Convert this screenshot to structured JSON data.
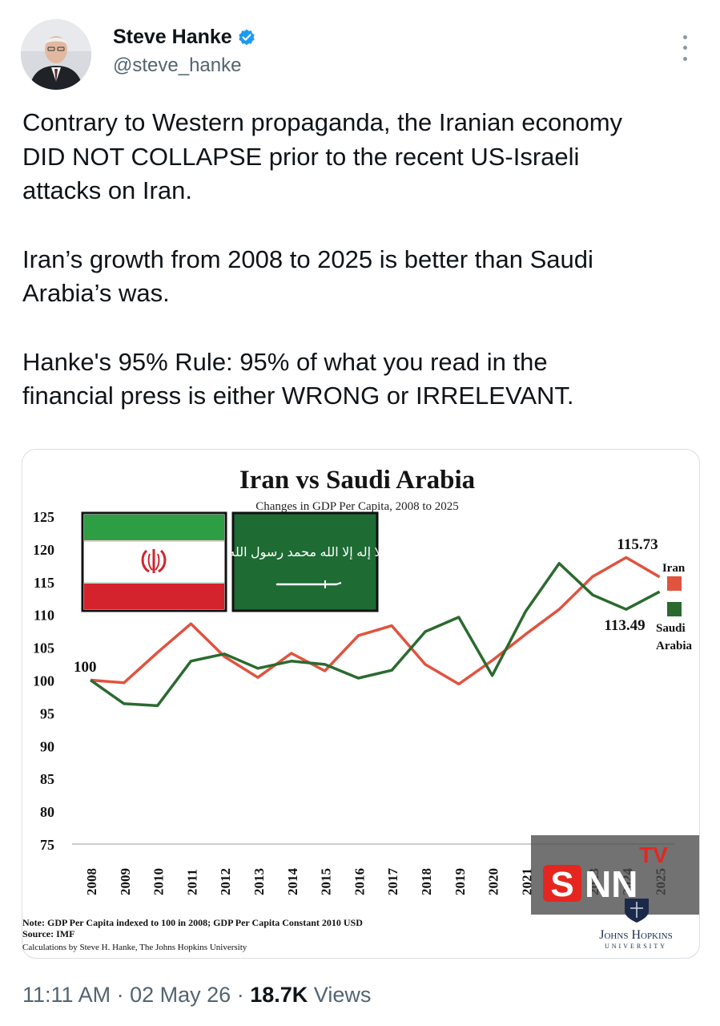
{
  "user": {
    "name": "Steve Hanke",
    "handle": "@steve_hanke"
  },
  "tweet": {
    "paragraphs": [
      "Contrary to Western propaganda, the Iranian economy\nDID NOT COLLAPSE prior to the recent US-Israeli\nattacks on Iran.",
      "Iran’s growth from 2008 to 2025 is better than Saudi\nArabia’s was.",
      "Hanke's 95% Rule: 95% of what you read in the\nfinancial press is either WRONG or IRRELEVANT."
    ]
  },
  "chart": {
    "flag_inscription": "لا إله إلا الله محمد رسول الله",
    "notes": [
      "Note: GDP Per Capita indexed to 100 in 2008; GDP Per Capita Constant 2010 USD",
      "Source: IMF",
      "Calculations by Steve H. Hanke, The Johns Hopkins University"
    ],
    "logo_line1": "Johns Hopkins",
    "logo_line2": "UNIVERSITY",
    "watermark": "SNN",
    "watermark_sup": "TV"
  },
  "chart_data": {
    "type": "line",
    "title": "Iran vs Saudi Arabia",
    "subtitle": "Changes in GDP Per Capita, 2008 to 2025",
    "xlabel": "",
    "ylabel": "",
    "x": [
      "2008",
      "2009",
      "2010",
      "2011",
      "2012",
      "2013",
      "2014",
      "2015",
      "2016",
      "2017",
      "2018",
      "2019",
      "2020",
      "2021",
      "2022",
      "2023",
      "2024",
      "2025"
    ],
    "ylim": [
      75,
      125
    ],
    "yticks": [
      125,
      120,
      115,
      110,
      105,
      100,
      95,
      90,
      85,
      80,
      75
    ],
    "series": [
      {
        "name": "Iran",
        "color": "#e0533f",
        "values": [
          100,
          99.6,
          104.2,
          108.6,
          103.6,
          100.4,
          104.1,
          101.4,
          106.8,
          108.3,
          102.4,
          99.4,
          103.0,
          107.0,
          110.8,
          115.8,
          118.7,
          115.73
        ]
      },
      {
        "name": "Saudi Arabia",
        "color": "#2b6a2f",
        "values": [
          100,
          96.4,
          96.1,
          102.9,
          104.0,
          101.8,
          102.9,
          102.4,
          100.3,
          101.5,
          107.4,
          109.6,
          100.7,
          110.5,
          117.8,
          113.0,
          110.8,
          113.49
        ]
      }
    ],
    "data_labels": {
      "start": "100",
      "iran_end": "115.73",
      "saudi_end": "113.49",
      "legend_iran": "Iran",
      "legend_saudi_1": "Saudi",
      "legend_saudi_2": "Arabia"
    },
    "grid": false,
    "legend": "right"
  },
  "footer": {
    "time": "11:11 AM",
    "date": "02 May 26",
    "views_count": "18.7K",
    "views_label": "Views"
  },
  "colors": {
    "verified": "#1d9bf0",
    "iran_line": "#e0533f",
    "saudi_line": "#2b6a2f",
    "iran_flag_green": "#2e9e45",
    "iran_flag_red": "#d4232c",
    "saudi_flag": "#1e6b34",
    "watermark_red": "#e52620"
  }
}
